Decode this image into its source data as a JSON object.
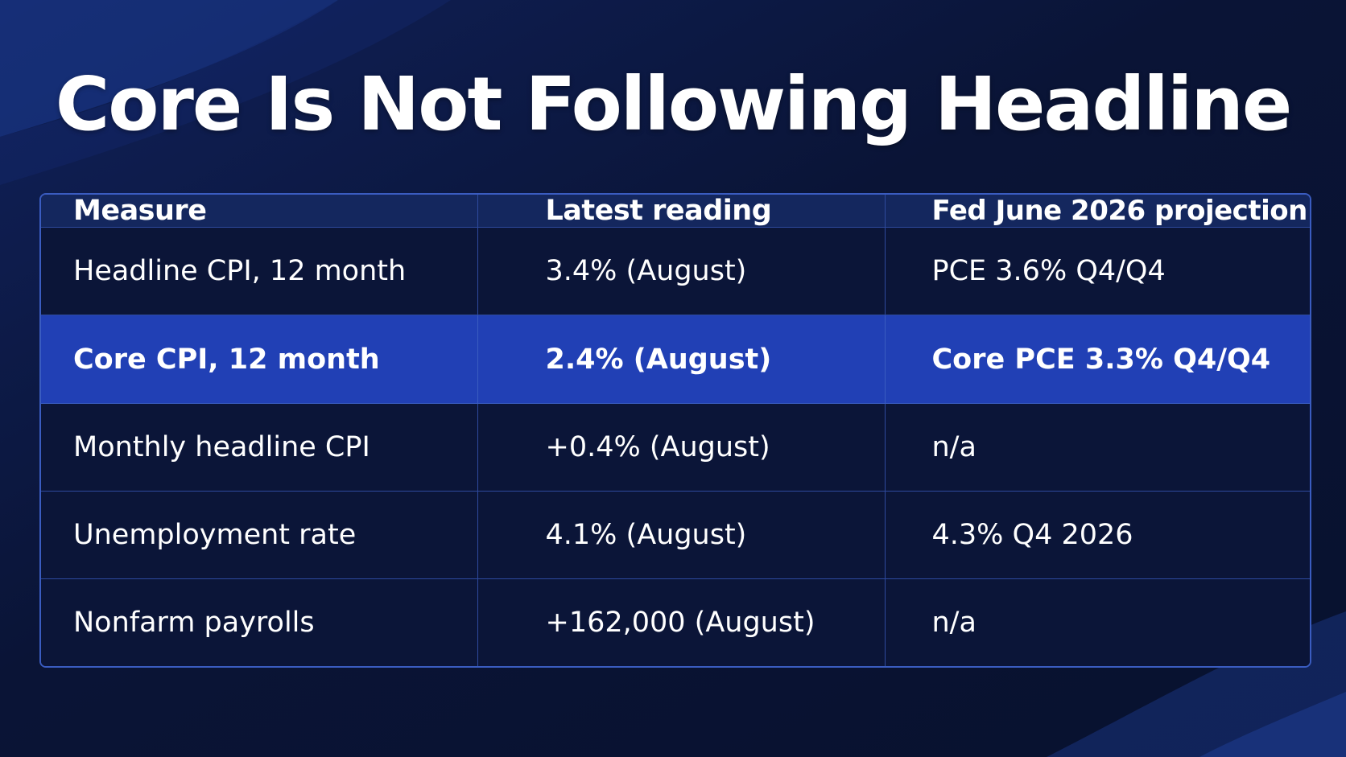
{
  "title": "Core Is Not Following Headline",
  "table": {
    "headers": [
      "Measure",
      "Latest reading",
      "Fed June 2026 projection"
    ],
    "rows": [
      {
        "measure": "Headline CPI, 12 month",
        "latest": "3.4% (August)",
        "projection": "PCE 3.6% Q4/Q4",
        "highlighted": false
      },
      {
        "measure": "Core CPI, 12 month",
        "latest": "2.4% (August)",
        "projection": "Core PCE 3.3% Q4/Q4",
        "highlighted": true
      },
      {
        "measure": "Monthly headline CPI",
        "latest": "+0.4% (August)",
        "projection": "n/a",
        "highlighted": false
      },
      {
        "measure": "Unemployment rate",
        "latest": "4.1% (August)",
        "projection": "4.3% Q4 2026",
        "highlighted": false
      },
      {
        "measure": "Nonfarm payrolls",
        "latest": "+162,000 (August)",
        "projection": "n/a",
        "highlighted": false
      }
    ]
  },
  "colors": {
    "background": "#0a1436",
    "header_row": "#14275e",
    "highlight_row": "#2140b5",
    "grid_lines": "#2e4a9e",
    "text": "#ffffff"
  }
}
